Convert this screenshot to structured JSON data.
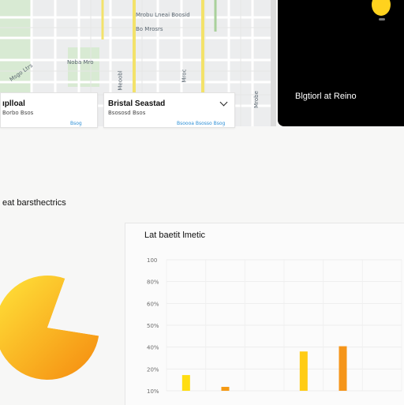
{
  "map": {
    "labels": [
      "Mrobu Lneai Boosid",
      "Bo Mrosrs",
      "Noba Mro",
      "Msgo Ltrs",
      "Meoobl",
      "Mroc",
      "Mrobe"
    ]
  },
  "cards": [
    {
      "title": "ıplloal",
      "subtitle": "Borbo Bsos",
      "meta": "Bsog"
    },
    {
      "title": "Bristal Seastad",
      "subtitle": "Bsososd Bsos",
      "meta": "Bsoooa Bsosso Bsog"
    }
  ],
  "dark_panel": {
    "title": "Blgtiorl at Reino",
    "accent_color": "#ffd21e"
  },
  "analytics": {
    "section_title": "eat barsthectrics"
  },
  "chart_data": {
    "type": "bar",
    "title": "Lat baetit lmetic",
    "y_ticks": [
      "100",
      "80%",
      "60%",
      "50%",
      "40%",
      "20%",
      "10%"
    ],
    "categories": [
      "",
      "",
      "",
      "",
      "",
      ""
    ],
    "values": [
      12,
      3,
      0,
      30,
      34,
      0
    ],
    "colors": [
      "#ffdd12",
      "#f59a14",
      "#ffdd12",
      "#ffcc14",
      "#f5951a",
      "#ffdd12"
    ],
    "ylim": [
      0,
      100
    ]
  },
  "pie_data": {
    "type": "pie",
    "values": [
      78,
      22
    ],
    "colors": [
      "#ffd21e",
      "#f7f7f6"
    ]
  }
}
